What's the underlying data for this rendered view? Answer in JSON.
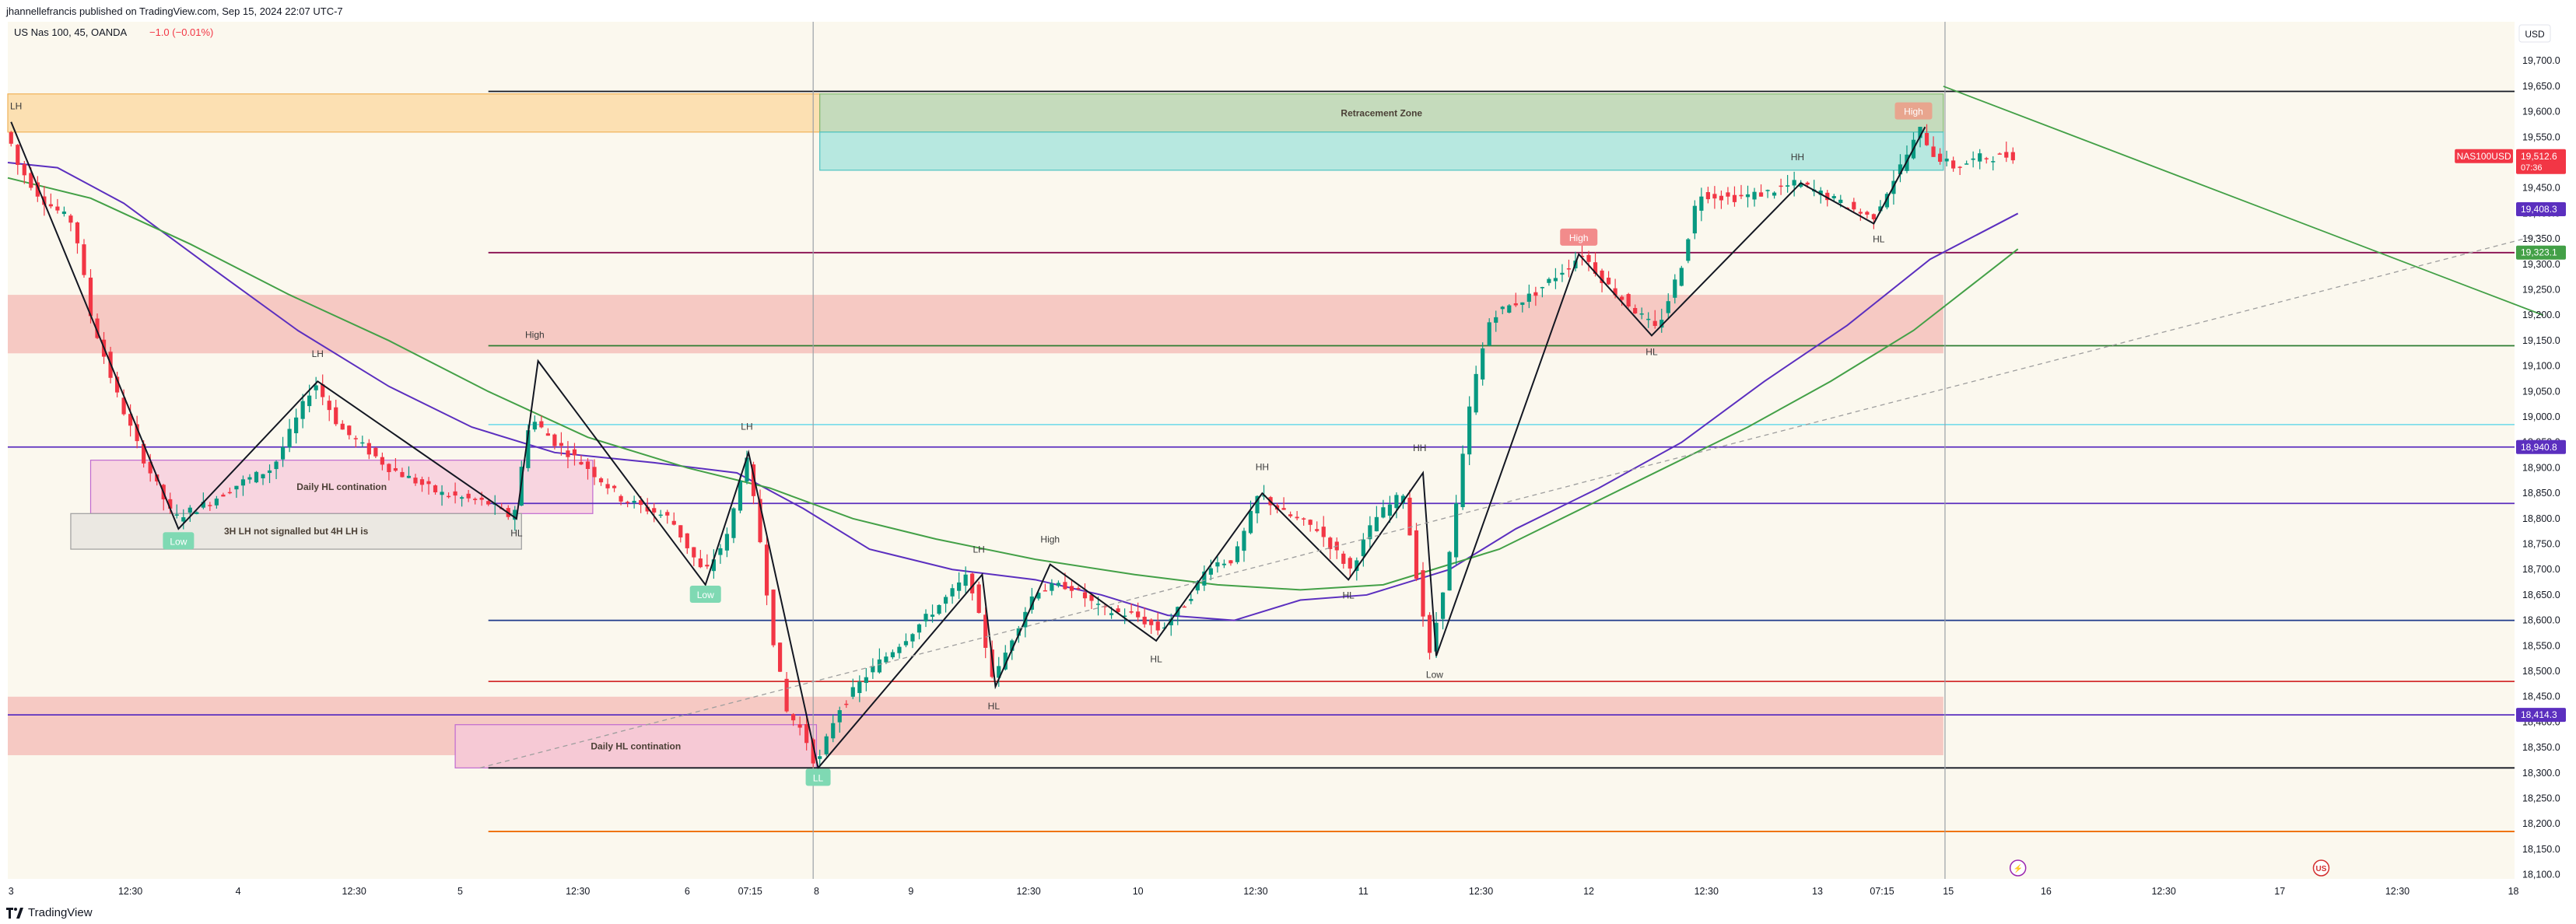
{
  "header": {
    "published": "jhannellefrancis published on TradingView.com, Sep 15, 2024 22:07 UTC-7",
    "symbol": "US Nas 100, 45, OANDA",
    "change": "−1.0 (−0.01%)"
  },
  "footer": {
    "brand": "TradingView"
  },
  "colors": {
    "background": "#fbf8ee",
    "up": "#089981",
    "down": "#f23645",
    "purple": "#5b2fbf",
    "green_ma": "#43a047",
    "navy": "#1e3a8a"
  },
  "chart_data": {
    "type": "candlestick",
    "symbol": "US Nas 100",
    "timeframe": "45",
    "broker": "OANDA",
    "currency": "USD",
    "ylim": [
      18075,
      19760
    ],
    "y_ticks": [
      18100,
      18150,
      18200,
      18250,
      18300,
      18350,
      18400,
      18450,
      18500,
      18550,
      18600,
      18650,
      18700,
      18750,
      18800,
      18850,
      18900,
      18950,
      19000,
      19050,
      19100,
      19150,
      19200,
      19250,
      19300,
      19350,
      19400,
      19450,
      19500,
      19550,
      19600,
      19650,
      19700
    ],
    "x_ticks": [
      {
        "t": 2,
        "label": "3"
      },
      {
        "t": 74,
        "label": "12:30"
      },
      {
        "t": 139,
        "label": "4"
      },
      {
        "t": 209,
        "label": "12:30"
      },
      {
        "t": 273,
        "label": "5"
      },
      {
        "t": 344,
        "label": "12:30"
      },
      {
        "t": 410,
        "label": "6"
      },
      {
        "t": 448,
        "label": "07:15"
      },
      {
        "t": 488,
        "label": "8"
      },
      {
        "t": 545,
        "label": "9"
      },
      {
        "t": 616,
        "label": "12:30"
      },
      {
        "t": 682,
        "label": "10"
      },
      {
        "t": 753,
        "label": "12:30"
      },
      {
        "t": 818,
        "label": "11"
      },
      {
        "t": 889,
        "label": "12:30"
      },
      {
        "t": 954,
        "label": "12"
      },
      {
        "t": 1025,
        "label": "12:30"
      },
      {
        "t": 1092,
        "label": "13"
      },
      {
        "t": 1131,
        "label": "07:15"
      },
      {
        "t": 1171,
        "label": "15"
      },
      {
        "t": 1230,
        "label": "16"
      },
      {
        "t": 1301,
        "label": "12:30"
      },
      {
        "t": 1371,
        "label": "17"
      },
      {
        "t": 1442,
        "label": "12:30"
      },
      {
        "t": 1512,
        "label": "18"
      }
    ],
    "session_breaks": [
      486,
      1169
    ],
    "price_path": [
      [
        0,
        19560
      ],
      [
        5,
        19500
      ],
      [
        20,
        19430
      ],
      [
        40,
        19380
      ],
      [
        50,
        19200
      ],
      [
        65,
        19050
      ],
      [
        80,
        18930
      ],
      [
        100,
        18800
      ],
      [
        120,
        18830
      ],
      [
        140,
        18870
      ],
      [
        160,
        18900
      ],
      [
        185,
        19070
      ],
      [
        200,
        18980
      ],
      [
        230,
        18900
      ],
      [
        260,
        18850
      ],
      [
        290,
        18830
      ],
      [
        305,
        18800
      ],
      [
        315,
        19000
      ],
      [
        330,
        18950
      ],
      [
        350,
        18900
      ],
      [
        370,
        18840
      ],
      [
        400,
        18800
      ],
      [
        420,
        18690
      ],
      [
        435,
        18770
      ],
      [
        445,
        18930
      ],
      [
        453,
        18780
      ],
      [
        462,
        18560
      ],
      [
        470,
        18420
      ],
      [
        480,
        18380
      ],
      [
        488,
        18310
      ],
      [
        500,
        18420
      ],
      [
        520,
        18500
      ],
      [
        540,
        18560
      ],
      [
        565,
        18640
      ],
      [
        580,
        18690
      ],
      [
        595,
        18480
      ],
      [
        605,
        18560
      ],
      [
        620,
        18660
      ],
      [
        640,
        18670
      ],
      [
        660,
        18620
      ],
      [
        680,
        18610
      ],
      [
        695,
        18580
      ],
      [
        712,
        18640
      ],
      [
        725,
        18710
      ],
      [
        740,
        18720
      ],
      [
        755,
        18850
      ],
      [
        770,
        18810
      ],
      [
        790,
        18780
      ],
      [
        810,
        18700
      ],
      [
        825,
        18800
      ],
      [
        842,
        18850
      ],
      [
        858,
        18530
      ],
      [
        870,
        18730
      ],
      [
        883,
        19040
      ],
      [
        895,
        19200
      ],
      [
        920,
        19240
      ],
      [
        950,
        19320
      ],
      [
        965,
        19260
      ],
      [
        995,
        19170
      ],
      [
        1010,
        19300
      ],
      [
        1020,
        19440
      ],
      [
        1040,
        19430
      ],
      [
        1060,
        19440
      ],
      [
        1080,
        19460
      ],
      [
        1100,
        19430
      ],
      [
        1125,
        19390
      ],
      [
        1140,
        19480
      ],
      [
        1155,
        19570
      ],
      [
        1160,
        19520
      ],
      [
        1175,
        19490
      ],
      [
        1190,
        19510
      ],
      [
        1213,
        19514
      ]
    ],
    "ma_purple": [
      [
        0,
        19500
      ],
      [
        30,
        19490
      ],
      [
        70,
        19420
      ],
      [
        120,
        19300
      ],
      [
        175,
        19170
      ],
      [
        230,
        19060
      ],
      [
        280,
        18980
      ],
      [
        330,
        18930
      ],
      [
        390,
        18910
      ],
      [
        440,
        18890
      ],
      [
        480,
        18820
      ],
      [
        520,
        18740
      ],
      [
        570,
        18700
      ],
      [
        620,
        18680
      ],
      [
        660,
        18650
      ],
      [
        700,
        18610
      ],
      [
        740,
        18600
      ],
      [
        780,
        18640
      ],
      [
        820,
        18650
      ],
      [
        870,
        18700
      ],
      [
        910,
        18780
      ],
      [
        960,
        18860
      ],
      [
        1010,
        18950
      ],
      [
        1060,
        19070
      ],
      [
        1110,
        19180
      ],
      [
        1160,
        19310
      ],
      [
        1213,
        19400
      ]
    ],
    "ma_green": [
      [
        0,
        19470
      ],
      [
        50,
        19430
      ],
      [
        110,
        19340
      ],
      [
        170,
        19240
      ],
      [
        230,
        19150
      ],
      [
        290,
        19050
      ],
      [
        350,
        18960
      ],
      [
        410,
        18900
      ],
      [
        460,
        18860
      ],
      [
        510,
        18800
      ],
      [
        560,
        18760
      ],
      [
        620,
        18720
      ],
      [
        680,
        18690
      ],
      [
        730,
        18670
      ],
      [
        780,
        18660
      ],
      [
        830,
        18670
      ],
      [
        860,
        18700
      ],
      [
        900,
        18740
      ],
      [
        950,
        18820
      ],
      [
        1000,
        18900
      ],
      [
        1050,
        18980
      ],
      [
        1100,
        19070
      ],
      [
        1150,
        19170
      ],
      [
        1213,
        19330
      ]
    ],
    "zigzag": [
      [
        2,
        19580
      ],
      [
        103,
        18780
      ],
      [
        187,
        19070
      ],
      [
        307,
        18800
      ],
      [
        320,
        19110
      ],
      [
        421,
        18670
      ],
      [
        447,
        18930
      ],
      [
        489,
        18310
      ],
      [
        588,
        18690
      ],
      [
        596,
        18470
      ],
      [
        629,
        18710
      ],
      [
        693,
        18560
      ],
      [
        757,
        18850
      ],
      [
        809,
        18680
      ],
      [
        854,
        18890
      ],
      [
        862,
        18530
      ],
      [
        948,
        19320
      ],
      [
        992,
        19160
      ],
      [
        1082,
        19460
      ],
      [
        1126,
        19380
      ],
      [
        1157,
        19570
      ]
    ],
    "trend_lines": [
      {
        "name": "bearish-trendline",
        "from": [
          1168,
          19650
        ],
        "to": [
          1530,
          19200
        ],
        "color": "#43a047"
      },
      {
        "name": "dashed-trendline",
        "from": [
          285,
          18310
        ],
        "to": [
          1530,
          19360
        ],
        "color": "#9e9e9e",
        "dashed": true
      }
    ],
    "horizontal_levels": [
      {
        "price": 19640,
        "from": 290,
        "color": "#131722"
      },
      {
        "price": 19323,
        "from": 290,
        "color": "#880e4f"
      },
      {
        "price": 19140,
        "from": 290,
        "color": "#2e7d32"
      },
      {
        "price": 18985,
        "from": 290,
        "color": "#80deea"
      },
      {
        "price": 18940.8,
        "from": 0,
        "color": "#5b2fbf",
        "tag": "18,940.8"
      },
      {
        "price": 18830,
        "from": 290,
        "color": "#5b2fbf"
      },
      {
        "price": 18600,
        "from": 290,
        "color": "#1e3a8a"
      },
      {
        "price": 18480,
        "from": 290,
        "color": "#d32f2f"
      },
      {
        "price": 18414.3,
        "from": 0,
        "color": "#5b2fbf",
        "tag": "18,414.3"
      },
      {
        "price": 18310,
        "from": 290,
        "color": "#131722"
      },
      {
        "price": 18185,
        "from": 290,
        "color": "#ef6c00"
      }
    ],
    "zones": [
      {
        "name": "orange-supply-zone",
        "x0": 0,
        "x1": 490,
        "p0": 19560,
        "p1": 19635,
        "fill": "#fce0b2",
        "stroke": "#f0b259"
      },
      {
        "name": "retracement-zone-green",
        "x0": 490,
        "x1": 1168,
        "p0": 19560,
        "p1": 19635,
        "fill": "#c5dbbc",
        "stroke": "#82b96f",
        "label": "Retracement Zone"
      },
      {
        "name": "retracement-zone-teal",
        "x0": 490,
        "x1": 1168,
        "p0": 19485,
        "p1": 19560,
        "fill": "#b7e8e0",
        "stroke": "#4fc3c1"
      },
      {
        "name": "red-zone-upper",
        "x0": 0,
        "x1": 1168,
        "p0": 19125,
        "p1": 19240,
        "fill": "#f6c9c3",
        "stroke": "none"
      },
      {
        "name": "red-zone-lower",
        "x0": 0,
        "x1": 1168,
        "p0": 18335,
        "p1": 18450,
        "fill": "#f6c9c3",
        "stroke": "none"
      },
      {
        "name": "daily-hl-box-upper",
        "x0": 50,
        "x1": 353,
        "p0": 18810,
        "p1": 18915,
        "fill": "#f8d5e0",
        "stroke": "#c06ad0",
        "label": "Daily HL contination"
      },
      {
        "name": "daily-hl-box-lower",
        "x0": 270,
        "x1": 488,
        "p0": 18310,
        "p1": 18395,
        "fill": "#f6c9d5",
        "stroke": "#c06ad0",
        "label": "Daily HL contination"
      },
      {
        "name": "gray-note-box",
        "x0": 38,
        "x1": 310,
        "p0": 18740,
        "p1": 18810,
        "fill": "#ebe8e2",
        "stroke": "#9e9e9e",
        "label": "3H LH not signalled but 4H LH is"
      }
    ],
    "annotations": [
      {
        "text": "LH",
        "t": 5,
        "p": 19605
      },
      {
        "text": "LH",
        "t": 187,
        "p": 19118
      },
      {
        "text": "High",
        "t": 318,
        "p": 19155
      },
      {
        "text": "LH",
        "t": 446,
        "p": 18975
      },
      {
        "text": "HL",
        "t": 307,
        "p": 18765
      },
      {
        "text": "LH",
        "t": 586,
        "p": 18733
      },
      {
        "text": "High",
        "t": 629,
        "p": 18753
      },
      {
        "text": "HL",
        "t": 595,
        "p": 18425
      },
      {
        "text": "HL",
        "t": 693,
        "p": 18518
      },
      {
        "text": "HH",
        "t": 757,
        "p": 18895
      },
      {
        "text": "HL",
        "t": 809,
        "p": 18643
      },
      {
        "text": "HH",
        "t": 852,
        "p": 18933
      },
      {
        "text": "Low",
        "t": 861,
        "p": 18487
      },
      {
        "text": "HL",
        "t": 992,
        "p": 19122
      },
      {
        "text": "HH",
        "t": 1080,
        "p": 19505
      },
      {
        "text": "HL",
        "t": 1129,
        "p": 19343
      }
    ],
    "boxed_labels": [
      {
        "text": "Low",
        "t": 103,
        "p": 18755,
        "bg": "#7fd9b3",
        "fg": "#ffffff"
      },
      {
        "text": "Low",
        "t": 421,
        "p": 18650,
        "bg": "#7fd9b3",
        "fg": "#ffffff"
      },
      {
        "text": "LL",
        "t": 489,
        "p": 18290,
        "bg": "#7fd9b3",
        "fg": "#ffffff"
      },
      {
        "text": "High",
        "t": 948,
        "p": 19352,
        "bg": "#f28b8b",
        "fg": "#ffffff"
      },
      {
        "text": "High",
        "t": 1150,
        "p": 19600,
        "bg": "#e8a58e",
        "fg": "#ffffff"
      }
    ],
    "price_tags": [
      {
        "text": "NAS100USD",
        "p": 19512.6,
        "bg": "#f23645",
        "left": true
      },
      {
        "text": "19,512.6",
        "p": 19512.6,
        "bg": "#f23645",
        "sub": "07:36"
      },
      {
        "text": "19,408.3",
        "p": 19408.3,
        "bg": "#5b2fbf"
      },
      {
        "text": "19,323.1",
        "p": 19323.1,
        "bg": "#43a047"
      },
      {
        "text": "18,940.8",
        "p": 18940.8,
        "bg": "#5b2fbf"
      },
      {
        "text": "18,414.3",
        "p": 18414.3,
        "bg": "#5b2fbf"
      }
    ],
    "event_icons": [
      {
        "name": "lightning-icon",
        "t": 1213,
        "glyph": "⚡",
        "color": "#9c27b0"
      },
      {
        "name": "us-flag-icon",
        "t": 1396,
        "glyph": "US",
        "color": "#d32f2f"
      }
    ]
  }
}
